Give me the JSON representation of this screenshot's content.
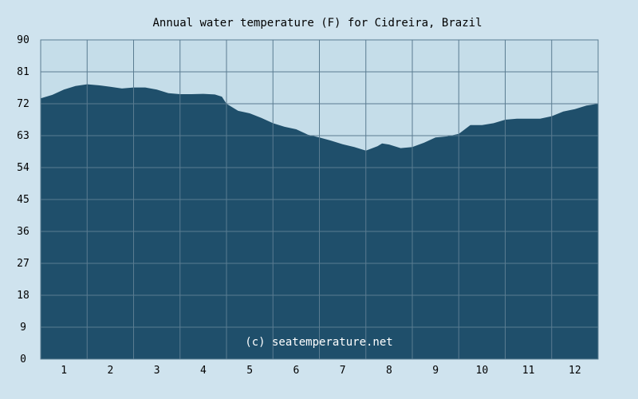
{
  "colors": {
    "background": "#cfe3ee",
    "plot_background": "#c5dde9",
    "fill": "#1f4f6b",
    "grid": "#5a7c91"
  },
  "chart_data": {
    "type": "area",
    "title": "Annual water temperature (F) for Cidreira, Brazil",
    "watermark": "(c) seatemperature.net",
    "xlabel": "",
    "ylabel": "",
    "x_ticks": [
      "1",
      "2",
      "3",
      "4",
      "5",
      "6",
      "7",
      "8",
      "9",
      "10",
      "11",
      "12"
    ],
    "y_ticks": [
      "0",
      "9",
      "18",
      "27",
      "36",
      "45",
      "54",
      "63",
      "72",
      "81",
      "90"
    ],
    "ylim": [
      0,
      90
    ],
    "xlim": [
      0.5,
      12.5
    ],
    "grid": true,
    "x": [
      0.5,
      0.75,
      1.0,
      1.25,
      1.5,
      1.75,
      2.0,
      2.25,
      2.5,
      2.75,
      3.0,
      3.25,
      3.5,
      3.75,
      4.0,
      4.25,
      4.4,
      4.5,
      4.75,
      5.0,
      5.25,
      5.5,
      5.75,
      6.0,
      6.25,
      6.5,
      6.75,
      7.0,
      7.25,
      7.5,
      7.75,
      7.85,
      8.0,
      8.25,
      8.5,
      8.75,
      9.0,
      9.25,
      9.5,
      9.75,
      10.0,
      10.25,
      10.5,
      10.75,
      11.0,
      11.25,
      11.5,
      11.75,
      12.0,
      12.25,
      12.5
    ],
    "y": [
      73.5,
      74.5,
      76.0,
      77.0,
      77.5,
      77.2,
      76.8,
      76.3,
      76.6,
      76.6,
      76.0,
      75.0,
      74.7,
      74.7,
      74.8,
      74.6,
      74.0,
      72.0,
      70.0,
      69.3,
      68.0,
      66.5,
      65.5,
      64.8,
      63.3,
      62.5,
      61.6,
      60.6,
      59.8,
      58.8,
      60.0,
      60.8,
      60.5,
      59.5,
      59.8,
      61.0,
      62.5,
      62.8,
      63.5,
      66.0,
      66.0,
      66.5,
      67.5,
      67.8,
      67.8,
      67.8,
      68.5,
      69.8,
      70.5,
      71.5,
      72.0
    ]
  }
}
